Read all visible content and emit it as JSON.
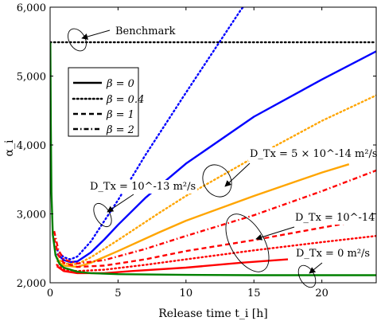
{
  "chart_data": {
    "type": "line",
    "title": "",
    "xlabel": "Release time t_i [h]",
    "ylabel": "α_i",
    "xlim": [
      0,
      24
    ],
    "ylim": [
      2000,
      6000
    ],
    "x_ticks": [
      0,
      5,
      10,
      15,
      20
    ],
    "y_ticks": [
      2000,
      3000,
      4000,
      5000,
      6000
    ],
    "x_tick_labels": [
      "0",
      "5",
      "10",
      "15",
      "20"
    ],
    "y_tick_labels": [
      "2,000",
      "3,000",
      "4,000",
      "5,000",
      "6,000"
    ],
    "grid": false,
    "legend_position": "upper-left",
    "legend": [
      {
        "label": "β = 0",
        "dash": "solid"
      },
      {
        "label": "β = 0.4",
        "dash": "dotted"
      },
      {
        "label": "β = 1",
        "dash": "dashed"
      },
      {
        "label": "β = 2",
        "dash": "dashdot"
      }
    ],
    "annotations": [
      {
        "text": "Benchmark",
        "target": "benchmark"
      },
      {
        "text": "D_Tx = 10^-13 m²/s",
        "target": "blue"
      },
      {
        "text": "D_Tx = 5 × 10^-14 m²/s",
        "target": "orange"
      },
      {
        "text": "D_Tx = 10^-14 m²/s",
        "target": "red"
      },
      {
        "text": "D_Tx = 0 m²/s",
        "target": "green"
      }
    ],
    "series": [
      {
        "group": "benchmark",
        "beta": "0.4",
        "color": "#000000",
        "dash": "dotted",
        "points": [
          [
            0,
            5490
          ],
          [
            24,
            5490
          ]
        ]
      },
      {
        "group": "blue",
        "beta": "0",
        "color": "#0000ff",
        "dash": "solid",
        "points": [
          [
            0.5,
            2420
          ],
          [
            1,
            2330
          ],
          [
            1.5,
            2300
          ],
          [
            2,
            2310
          ],
          [
            3,
            2440
          ],
          [
            4,
            2630
          ],
          [
            5,
            2840
          ],
          [
            7,
            3230
          ],
          [
            10,
            3730
          ],
          [
            15,
            4410
          ],
          [
            20,
            4950
          ],
          [
            24,
            5360
          ]
        ]
      },
      {
        "group": "blue",
        "beta": "0.4",
        "color": "#0000ff",
        "dash": "dotted",
        "points": [
          [
            0.5,
            2480
          ],
          [
            1,
            2370
          ],
          [
            1.5,
            2340
          ],
          [
            2,
            2380
          ],
          [
            3,
            2600
          ],
          [
            4,
            2900
          ],
          [
            5,
            3200
          ],
          [
            7,
            3850
          ],
          [
            10,
            4760
          ],
          [
            14,
            5950
          ],
          [
            14.2,
            6000
          ]
        ]
      },
      {
        "group": "orange",
        "beta": "0",
        "color": "#ffa500",
        "dash": "solid",
        "points": [
          [
            0.5,
            2320
          ],
          [
            1,
            2250
          ],
          [
            2,
            2230
          ],
          [
            3,
            2290
          ],
          [
            5,
            2460
          ],
          [
            8,
            2730
          ],
          [
            10,
            2900
          ],
          [
            15,
            3260
          ],
          [
            20,
            3600
          ],
          [
            22,
            3720
          ]
        ]
      },
      {
        "group": "orange",
        "beta": "0.4",
        "color": "#ffa500",
        "dash": "dotted",
        "points": [
          [
            0.5,
            2360
          ],
          [
            1,
            2280
          ],
          [
            2,
            2270
          ],
          [
            3,
            2370
          ],
          [
            5,
            2620
          ],
          [
            8,
            3010
          ],
          [
            10,
            3260
          ],
          [
            15,
            3820
          ],
          [
            20,
            4350
          ],
          [
            24,
            4720
          ]
        ]
      },
      {
        "group": "red",
        "beta": "0",
        "color": "#ff0000",
        "dash": "solid",
        "points": [
          [
            0.5,
            2240
          ],
          [
            1,
            2170
          ],
          [
            2,
            2140
          ],
          [
            4,
            2140
          ],
          [
            6,
            2170
          ],
          [
            10,
            2220
          ],
          [
            14,
            2290
          ],
          [
            17.5,
            2340
          ]
        ]
      },
      {
        "group": "red",
        "beta": "0.4",
        "color": "#ff0000",
        "dash": "dotted",
        "points": [
          [
            0.5,
            2260
          ],
          [
            1,
            2190
          ],
          [
            2,
            2170
          ],
          [
            4,
            2190
          ],
          [
            7,
            2260
          ],
          [
            10,
            2340
          ],
          [
            15,
            2470
          ],
          [
            20,
            2590
          ],
          [
            24,
            2680
          ]
        ]
      },
      {
        "group": "red",
        "beta": "1",
        "color": "#ff0000",
        "dash": "dashed",
        "points": [
          [
            0.3,
            2650
          ],
          [
            0.6,
            2400
          ],
          [
            1,
            2290
          ],
          [
            2,
            2230
          ],
          [
            4,
            2250
          ],
          [
            7,
            2340
          ],
          [
            10,
            2460
          ],
          [
            15,
            2620
          ],
          [
            20,
            2800
          ],
          [
            24,
            2940
          ]
        ]
      },
      {
        "group": "red",
        "beta": "2",
        "color": "#ff0000",
        "dash": "dashdot",
        "points": [
          [
            0.3,
            2750
          ],
          [
            0.6,
            2480
          ],
          [
            1,
            2340
          ],
          [
            2,
            2280
          ],
          [
            4,
            2330
          ],
          [
            7,
            2490
          ],
          [
            10,
            2680
          ],
          [
            15,
            2980
          ],
          [
            20,
            3330
          ],
          [
            24,
            3630
          ]
        ]
      },
      {
        "group": "green",
        "beta": "0",
        "color": "#008000",
        "dash": "solid",
        "points": [
          [
            0.02,
            5490
          ],
          [
            0.05,
            4300
          ],
          [
            0.1,
            3300
          ],
          [
            0.2,
            2700
          ],
          [
            0.4,
            2400
          ],
          [
            0.7,
            2270
          ],
          [
            1,
            2220
          ],
          [
            2,
            2160
          ],
          [
            3,
            2140
          ],
          [
            5,
            2125
          ],
          [
            10,
            2115
          ],
          [
            15,
            2110
          ],
          [
            24,
            2110
          ]
        ]
      }
    ]
  }
}
